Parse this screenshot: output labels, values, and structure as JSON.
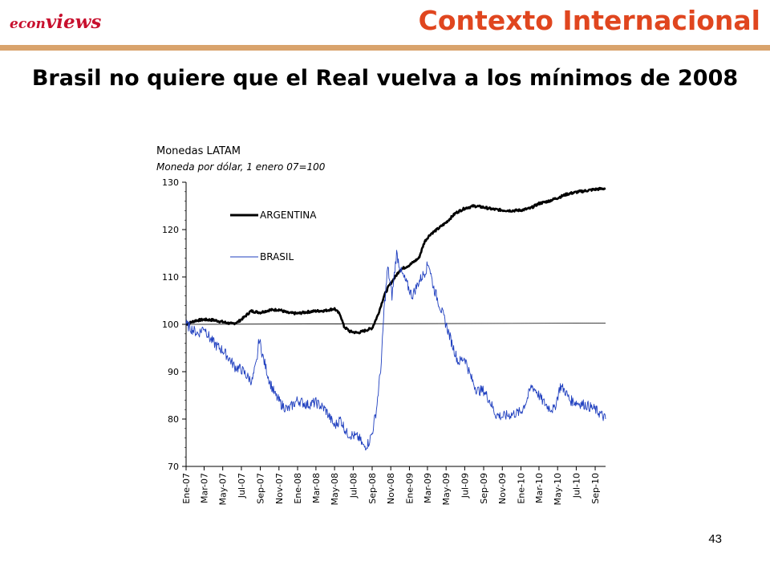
{
  "header": {
    "logo_part1": "econ",
    "logo_part2": "views",
    "title": "Contexto Internacional"
  },
  "slide": {
    "title": "Brasil no quiere que el Real vuelva a los mínimos de 2008",
    "page_number": "43"
  },
  "colors": {
    "accent": "#e0461f",
    "rule": "#d9a36c",
    "argentina": "#000000",
    "brasil": "#1f3fbf"
  },
  "chart_data": {
    "type": "line",
    "title": "Monedas LATAM",
    "subtitle": "Moneda por dólar, 1 enero 07=100",
    "xlabel": "",
    "ylabel": "",
    "ylim": [
      70,
      130
    ],
    "yticks": [
      70,
      80,
      90,
      100,
      110,
      120,
      130
    ],
    "x_ticks": [
      "Ene-07",
      "Mar-07",
      "May-07",
      "Jul-07",
      "Sep-07",
      "Nov-07",
      "Ene-08",
      "Mar-08",
      "May-08",
      "Jul-08",
      "Sep-08",
      "Nov-08",
      "Ene-09",
      "Mar-09",
      "May-09",
      "Jul-09",
      "Sep-09",
      "Nov-09",
      "Ene-10",
      "Mar-10",
      "May-10",
      "Jul-10",
      "Sep-10"
    ],
    "x_range": [
      "2007-01-01",
      "2010-10-05"
    ],
    "reference_line": 100,
    "legend_position": "top-left",
    "grid": false,
    "series": [
      {
        "name": "ARGENTINA",
        "points": [
          [
            "2007-01-01",
            100
          ],
          [
            "2007-02-01",
            100.8
          ],
          [
            "2007-03-01",
            101
          ],
          [
            "2007-04-01",
            100.9
          ],
          [
            "2007-05-01",
            100.5
          ],
          [
            "2007-06-01",
            100.1
          ],
          [
            "2007-06-20",
            100.5
          ],
          [
            "2007-07-10",
            101.5
          ],
          [
            "2007-08-01",
            102.8
          ],
          [
            "2007-09-01",
            102.5
          ],
          [
            "2007-10-01",
            103
          ],
          [
            "2007-11-01",
            103.1
          ],
          [
            "2007-12-01",
            102.4
          ],
          [
            "2008-01-01",
            102.3
          ],
          [
            "2008-02-01",
            102.6
          ],
          [
            "2008-03-01",
            102.8
          ],
          [
            "2008-04-01",
            102.9
          ],
          [
            "2008-05-01",
            103.3
          ],
          [
            "2008-05-20",
            102
          ],
          [
            "2008-06-01",
            99.5
          ],
          [
            "2008-06-20",
            98.5
          ],
          [
            "2008-07-15",
            98.2
          ],
          [
            "2008-08-01",
            98.5
          ],
          [
            "2008-09-01",
            99.2
          ],
          [
            "2008-09-20",
            102
          ],
          [
            "2008-10-10",
            106
          ],
          [
            "2008-10-25",
            108
          ],
          [
            "2008-11-10",
            109.5
          ],
          [
            "2008-12-01",
            111.5
          ],
          [
            "2009-01-01",
            112.5
          ],
          [
            "2009-02-01",
            114
          ],
          [
            "2009-02-20",
            117.5
          ],
          [
            "2009-03-10",
            119
          ],
          [
            "2009-04-01",
            120
          ],
          [
            "2009-05-01",
            121.5
          ],
          [
            "2009-06-01",
            123.5
          ],
          [
            "2009-07-01",
            124.5
          ],
          [
            "2009-08-01",
            125
          ],
          [
            "2009-09-01",
            124.7
          ],
          [
            "2009-10-01",
            124.3
          ],
          [
            "2009-11-01",
            124.1
          ],
          [
            "2009-12-01",
            124
          ],
          [
            "2010-01-01",
            124.1
          ],
          [
            "2010-02-01",
            124.5
          ],
          [
            "2010-03-01",
            125.5
          ],
          [
            "2010-04-01",
            126
          ],
          [
            "2010-05-01",
            126.7
          ],
          [
            "2010-06-01",
            127.5
          ],
          [
            "2010-07-01",
            127.9
          ],
          [
            "2010-08-01",
            128.2
          ],
          [
            "2010-09-01",
            128.5
          ],
          [
            "2010-10-05",
            128.7
          ]
        ]
      },
      {
        "name": "BRASIL",
        "points": [
          [
            "2007-01-01",
            100
          ],
          [
            "2007-01-20",
            99
          ],
          [
            "2007-02-10",
            98
          ],
          [
            "2007-03-01",
            99.5
          ],
          [
            "2007-03-20",
            97
          ],
          [
            "2007-04-10",
            95.5
          ],
          [
            "2007-05-01",
            94.5
          ],
          [
            "2007-05-20",
            93
          ],
          [
            "2007-06-10",
            91
          ],
          [
            "2007-07-01",
            90.5
          ],
          [
            "2007-07-20",
            89
          ],
          [
            "2007-08-05",
            88
          ],
          [
            "2007-08-20",
            92
          ],
          [
            "2007-08-28",
            97
          ],
          [
            "2007-09-10",
            93
          ],
          [
            "2007-10-01",
            88
          ],
          [
            "2007-10-20",
            85
          ],
          [
            "2007-11-10",
            83
          ],
          [
            "2007-12-01",
            82
          ],
          [
            "2008-01-01",
            84
          ],
          [
            "2008-02-01",
            83
          ],
          [
            "2008-03-01",
            83.5
          ],
          [
            "2008-04-01",
            82
          ],
          [
            "2008-05-01",
            78.5
          ],
          [
            "2008-05-20",
            80
          ],
          [
            "2008-06-10",
            77
          ],
          [
            "2008-07-01",
            76.5
          ],
          [
            "2008-07-20",
            76
          ],
          [
            "2008-08-05",
            74
          ],
          [
            "2008-08-20",
            75
          ],
          [
            "2008-09-01",
            77
          ],
          [
            "2008-09-15",
            82
          ],
          [
            "2008-10-01",
            92
          ],
          [
            "2008-10-10",
            103
          ],
          [
            "2008-10-22",
            112
          ],
          [
            "2008-11-05",
            106
          ],
          [
            "2008-11-20",
            115
          ],
          [
            "2008-12-05",
            111
          ],
          [
            "2008-12-20",
            109
          ],
          [
            "2009-01-10",
            106
          ],
          [
            "2009-02-01",
            109
          ],
          [
            "2009-02-20",
            111
          ],
          [
            "2009-03-05",
            113
          ],
          [
            "2009-03-20",
            108
          ],
          [
            "2009-04-10",
            104
          ],
          [
            "2009-05-01",
            100
          ],
          [
            "2009-05-20",
            96
          ],
          [
            "2009-06-10",
            92
          ],
          [
            "2009-07-01",
            93
          ],
          [
            "2009-07-20",
            89
          ],
          [
            "2009-08-10",
            86
          ],
          [
            "2009-09-01",
            86
          ],
          [
            "2009-09-20",
            84
          ],
          [
            "2009-10-10",
            81
          ],
          [
            "2009-11-01",
            80.5
          ],
          [
            "2009-12-01",
            81
          ],
          [
            "2010-01-01",
            81.5
          ],
          [
            "2010-01-20",
            84
          ],
          [
            "2010-02-05",
            87
          ],
          [
            "2010-02-20",
            86
          ],
          [
            "2010-03-10",
            84
          ],
          [
            "2010-04-01",
            82.5
          ],
          [
            "2010-04-20",
            82
          ],
          [
            "2010-05-10",
            87
          ],
          [
            "2010-05-25",
            86
          ],
          [
            "2010-06-10",
            84
          ],
          [
            "2010-07-01",
            83.5
          ],
          [
            "2010-08-01",
            83
          ],
          [
            "2010-09-01",
            82
          ],
          [
            "2010-09-20",
            81
          ],
          [
            "2010-10-05",
            80
          ]
        ]
      }
    ]
  }
}
